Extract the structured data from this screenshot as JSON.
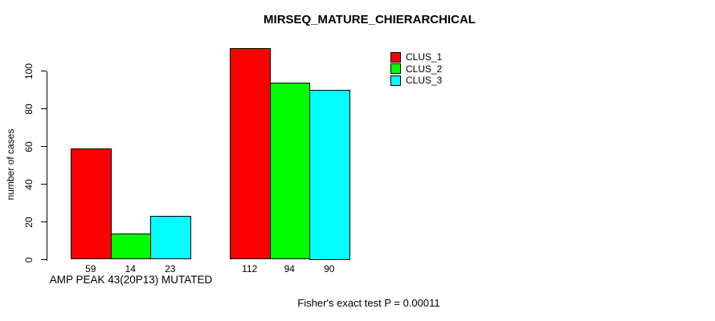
{
  "chart_data": {
    "type": "bar",
    "title": "MIRSEQ_MATURE_CHIERARCHICAL",
    "ylabel": "number of cases",
    "xlabel": "",
    "categories": [
      "AMP PEAK 43(20P13) MUTATED",
      ""
    ],
    "groups": [
      {
        "label": "AMP PEAK 43(20P13) MUTATED",
        "values": [
          59,
          14,
          23
        ]
      },
      {
        "label": "",
        "values": [
          112,
          94,
          90
        ]
      }
    ],
    "series": [
      {
        "name": "CLUS_1",
        "color": "#ff0000"
      },
      {
        "name": "CLUS_2",
        "color": "#00ff00"
      },
      {
        "name": "CLUS_3",
        "color": "#00ffff"
      }
    ],
    "yticks": [
      0,
      20,
      40,
      60,
      80,
      100
    ],
    "ylim": [
      0,
      115
    ],
    "grid": false,
    "legend_position": "top-right",
    "bar_value_labels": [
      59,
      14,
      23,
      112,
      94,
      90
    ],
    "annotation": "Fisher's exact test P = 0.00011"
  },
  "colors": {
    "background": "#ffffff",
    "axis": "#000000",
    "text": "#000000"
  }
}
